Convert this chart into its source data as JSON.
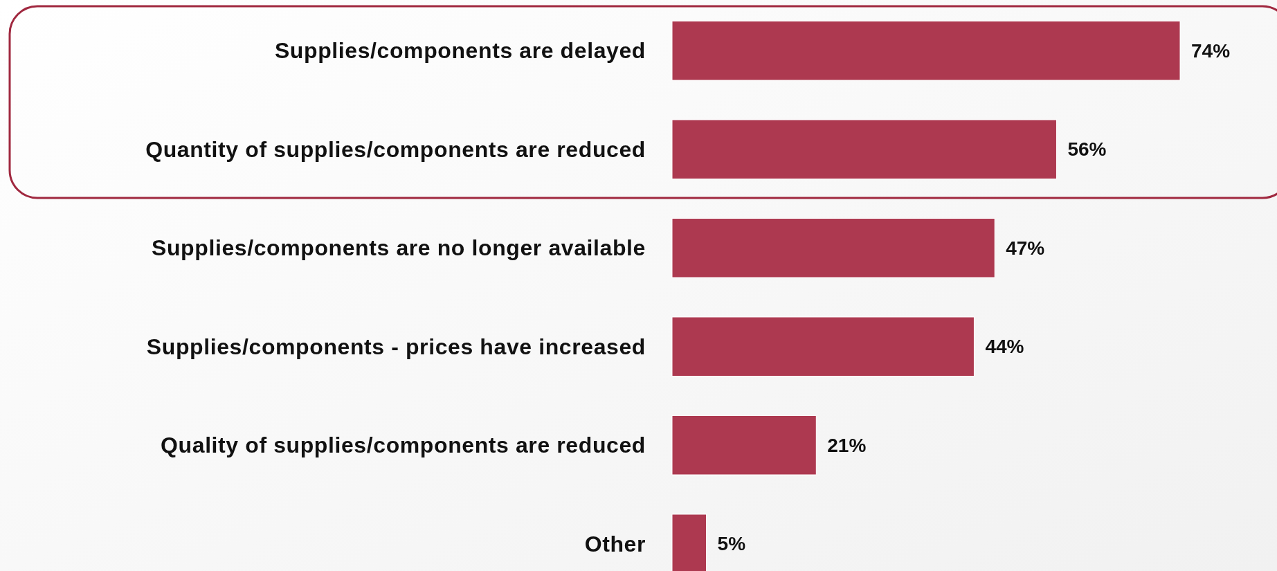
{
  "chart_data": {
    "type": "bar",
    "orientation": "horizontal",
    "categories": [
      "Supplies/components are delayed",
      "Quantity of supplies/components are reduced",
      "Supplies/components are no longer available",
      "Supplies/components - prices have increased",
      "Quality of supplies/components are reduced",
      "Other"
    ],
    "values": [
      74,
      56,
      47,
      44,
      21,
      5
    ],
    "value_labels": [
      "74%",
      "56%",
      "47%",
      "44%",
      "21%",
      "5%"
    ],
    "color": "#ad3950"
  }
}
